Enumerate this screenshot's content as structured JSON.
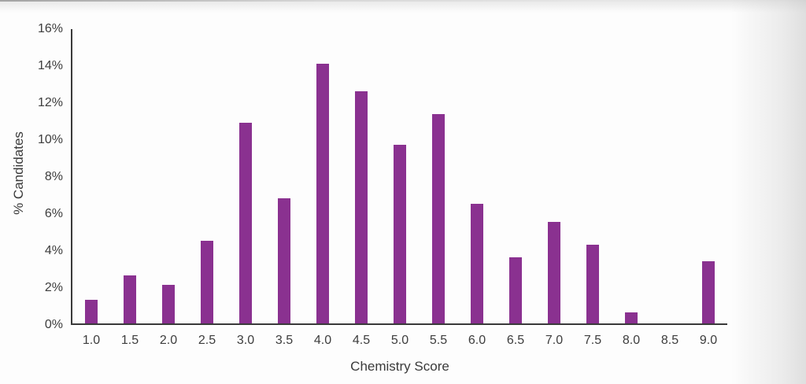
{
  "chart_data": {
    "type": "bar",
    "title": "",
    "xlabel": "Chemistry Score",
    "ylabel": "% Candidates",
    "categories": [
      "1.0",
      "1.5",
      "2.0",
      "2.5",
      "3.0",
      "3.5",
      "4.0",
      "4.5",
      "5.0",
      "5.5",
      "6.0",
      "6.5",
      "7.0",
      "7.5",
      "8.0",
      "8.5",
      "9.0"
    ],
    "values": [
      1.3,
      2.6,
      2.1,
      4.5,
      10.9,
      6.8,
      14.1,
      12.6,
      9.7,
      11.4,
      6.5,
      3.6,
      5.5,
      4.3,
      0.6,
      0,
      3.4
    ],
    "y_tick_labels": [
      "0%",
      "2%",
      "4%",
      "6%",
      "8%",
      "10%",
      "12%",
      "14%",
      "16%"
    ],
    "y_tick_values": [
      0,
      2,
      4,
      6,
      8,
      10,
      12,
      14,
      16
    ],
    "ylim": [
      0,
      16
    ],
    "grid": "off",
    "legend": "none",
    "bar_color": "#8a3190",
    "axis_color": "#3a3a3a",
    "text_color": "#3d3d3d"
  }
}
